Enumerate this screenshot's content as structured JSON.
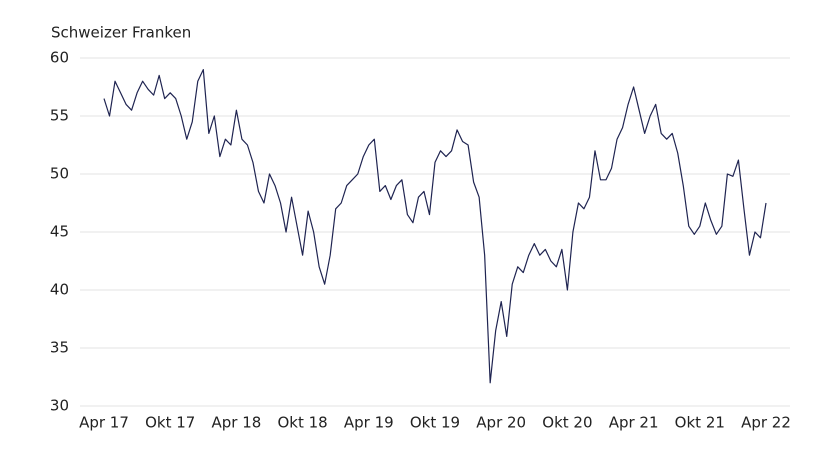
{
  "chart_data": {
    "type": "line",
    "y_axis_label": "Schweizer Franken",
    "categories": [
      "Apr 17",
      null,
      null,
      null,
      null,
      null,
      null,
      null,
      null,
      null,
      null,
      null,
      "Okt 17",
      null,
      null,
      null,
      null,
      null,
      null,
      null,
      null,
      null,
      null,
      null,
      "Apr 18",
      null,
      null,
      null,
      null,
      null,
      null,
      null,
      null,
      null,
      null,
      null,
      "Okt 18",
      null,
      null,
      null,
      null,
      null,
      null,
      null,
      null,
      null,
      null,
      null,
      "Apr 19",
      null,
      null,
      null,
      null,
      null,
      null,
      null,
      null,
      null,
      null,
      null,
      "Okt 19",
      null,
      null,
      null,
      null,
      null,
      null,
      null,
      null,
      null,
      null,
      null,
      "Apr 20",
      null,
      null,
      null,
      null,
      null,
      null,
      null,
      null,
      null,
      null,
      null,
      "Okt 20",
      null,
      null,
      null,
      null,
      null,
      null,
      null,
      null,
      null,
      null,
      null,
      "Apr 21",
      null,
      null,
      null,
      null,
      null,
      null,
      null,
      null,
      null,
      null,
      null,
      "Okt 21",
      null,
      null,
      null,
      null,
      null,
      null,
      null,
      null,
      null,
      null,
      null,
      "Apr 22"
    ],
    "series": [
      {
        "color": "#1f2451",
        "values": [
          56.5,
          55,
          58,
          57,
          56,
          55.5,
          57,
          58,
          57.3,
          56.8,
          58.5,
          56.5,
          57,
          56.5,
          55,
          53,
          54.5,
          58,
          59,
          53.5,
          55,
          51.5,
          53,
          52.5,
          55.5,
          53,
          52.5,
          51,
          48.5,
          47.5,
          50,
          49,
          47.5,
          45,
          48,
          45.5,
          43,
          46.8,
          45,
          42,
          40.5,
          43,
          47,
          47.5,
          49,
          49.5,
          50,
          51.5,
          52.5,
          53,
          48.5,
          49,
          47.8,
          49,
          49.5,
          46.5,
          45.8,
          48,
          48.5,
          46.5,
          51,
          52,
          51.5,
          52,
          53.8,
          52.8,
          52.5,
          49.3,
          48,
          43,
          32,
          36.5,
          39,
          36,
          40.5,
          42,
          41.5,
          43,
          44,
          43,
          43.5,
          42.5,
          42,
          43.5,
          40,
          45,
          47.5,
          47,
          48,
          52,
          49.5,
          49.5,
          50.5,
          53,
          54,
          56,
          57.5,
          55.5,
          53.5,
          55,
          56,
          53.5,
          53,
          53.5,
          51.8,
          49,
          45.5,
          44.8,
          45.5,
          47.5,
          46,
          44.8,
          45.5,
          50,
          49.8,
          51.2,
          47,
          43,
          45,
          44.5,
          47.5
        ]
      }
    ],
    "ylim": [
      30,
      60
    ],
    "yticks": [
      30,
      35,
      40,
      45,
      50,
      55,
      60
    ],
    "grid": true
  }
}
